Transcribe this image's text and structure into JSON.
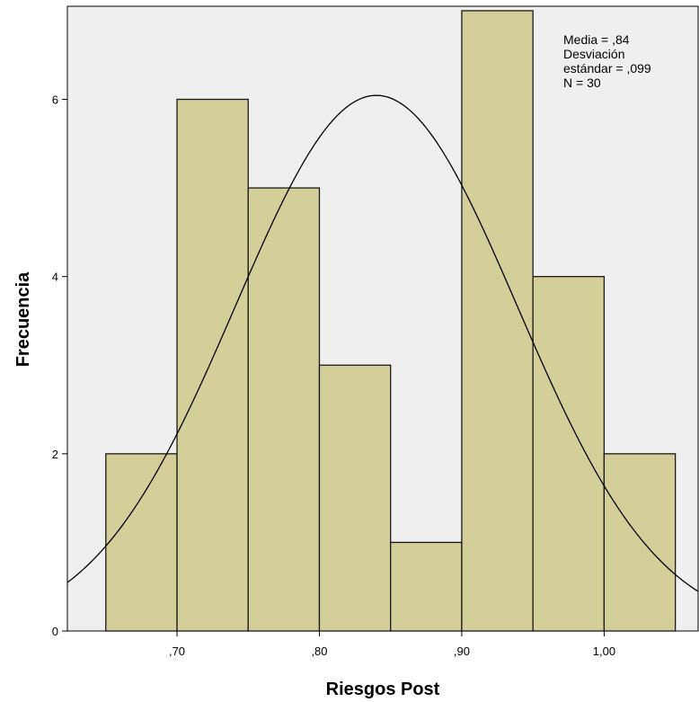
{
  "chart_data": {
    "type": "bar",
    "subtype": "histogram",
    "xlabel": "Riesgos Post",
    "ylabel": "Frecuencia",
    "bins": [
      {
        "start": 0.65,
        "end": 0.7,
        "count": 2
      },
      {
        "start": 0.7,
        "end": 0.75,
        "count": 6
      },
      {
        "start": 0.75,
        "end": 0.8,
        "count": 5
      },
      {
        "start": 0.8,
        "end": 0.85,
        "count": 3
      },
      {
        "start": 0.85,
        "end": 0.9,
        "count": 1
      },
      {
        "start": 0.9,
        "end": 0.95,
        "count": 7
      },
      {
        "start": 0.95,
        "end": 1.0,
        "count": 4
      },
      {
        "start": 1.0,
        "end": 1.05,
        "count": 2
      }
    ],
    "x_ticks": [
      {
        "value": 0.7,
        "label": ",70"
      },
      {
        "value": 0.8,
        "label": ",80"
      },
      {
        "value": 0.9,
        "label": ",90"
      },
      {
        "value": 1.0,
        "label": "1,00"
      }
    ],
    "y_ticks": [
      {
        "value": 0,
        "label": "0"
      },
      {
        "value": 2,
        "label": "2"
      },
      {
        "value": 4,
        "label": "4"
      },
      {
        "value": 6,
        "label": "6"
      }
    ],
    "xlim": [
      0.623,
      1.066
    ],
    "ylim": [
      0,
      7.05
    ],
    "normal_curve": {
      "mean": 0.84,
      "sd": 0.099,
      "n": 30,
      "bin_width": 0.05
    },
    "stats_box": {
      "lines": [
        "Media = ,84",
        "Desviación",
        "estándar = ,099",
        "N = 30"
      ]
    },
    "grid": false,
    "colors": {
      "bar_fill": "#d4cf99",
      "bar_stroke": "#1a1a1a",
      "plot_background": "#efefef",
      "curve": "#000000"
    }
  }
}
